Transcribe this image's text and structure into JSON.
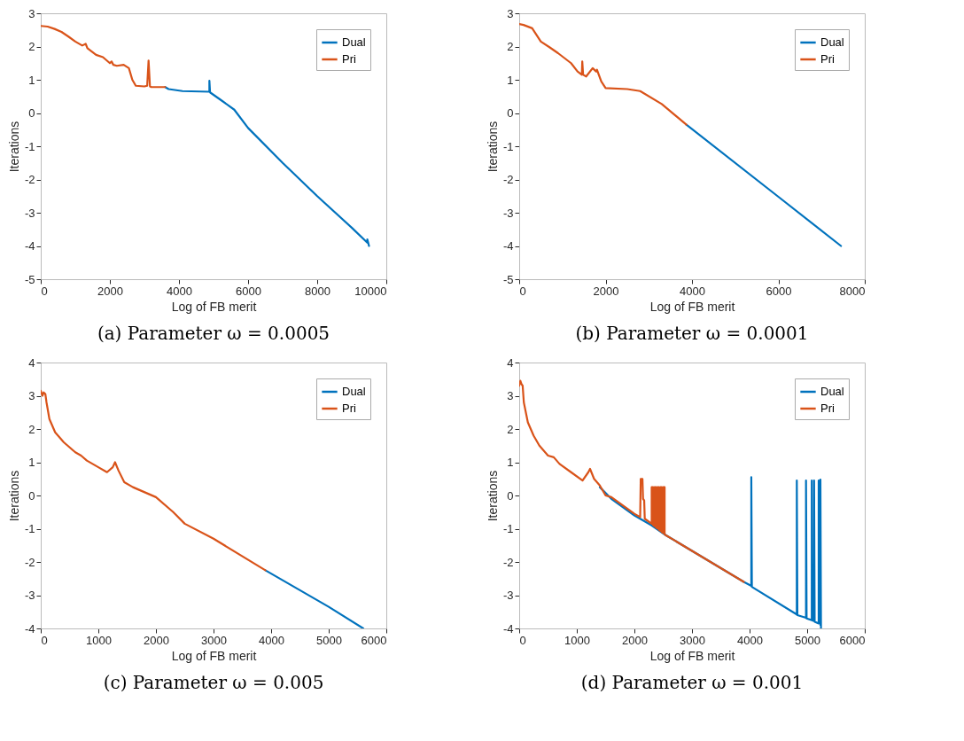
{
  "chart_data": [
    {
      "type": "line",
      "title": "(a) Parameter ω = 0.0005",
      "xlabel": "Log of FB merit",
      "ylabel": "Iterations",
      "xlim": [
        0,
        10000
      ],
      "xticks": [
        0,
        2000,
        4000,
        6000,
        8000,
        10000
      ],
      "ylim": [
        -5,
        3
      ],
      "yticks": [
        -5,
        -4,
        -3,
        -2,
        -1,
        0,
        1,
        2,
        3
      ],
      "legend": "top right",
      "line_style": "solid",
      "series": [
        {
          "name": "Dual",
          "color": "#0072bd",
          "x": [
            3600,
            3700,
            4100,
            4880,
            4880,
            4900,
            5200,
            5600,
            6000,
            7000,
            8000,
            9000,
            9450,
            9450,
            9500
          ],
          "values": [
            0.78,
            0.72,
            0.66,
            0.64,
            0.97,
            0.62,
            0.4,
            0.1,
            -0.45,
            -1.5,
            -2.5,
            -3.45,
            -3.9,
            -3.8,
            -4.0
          ]
        },
        {
          "name": "Pri",
          "color": "#d95319",
          "x": [
            0,
            200,
            400,
            600,
            800,
            1000,
            1200,
            1300,
            1350,
            1600,
            1800,
            2000,
            2050,
            2100,
            2200,
            2400,
            2550,
            2650,
            2750,
            3000,
            3080,
            3120,
            3160,
            3200,
            3400,
            3600
          ],
          "values": [
            2.62,
            2.6,
            2.53,
            2.44,
            2.3,
            2.15,
            2.03,
            2.08,
            1.95,
            1.75,
            1.68,
            1.5,
            1.55,
            1.45,
            1.42,
            1.45,
            1.35,
            1.0,
            0.82,
            0.8,
            0.82,
            1.58,
            0.8,
            0.78,
            0.78,
            0.78
          ]
        }
      ]
    },
    {
      "type": "line",
      "title": "(b) Parameter ω = 0.0001",
      "xlabel": "Log of FB merit",
      "ylabel": "Iterations",
      "xlim": [
        0,
        8000
      ],
      "xticks": [
        0,
        2000,
        4000,
        6000,
        8000
      ],
      "ylim": [
        -5,
        3
      ],
      "yticks": [
        -5,
        -4,
        -3,
        -2,
        -1,
        0,
        1,
        2,
        3
      ],
      "legend": "top right",
      "line_style": "solid",
      "series": [
        {
          "name": "Dual",
          "color": "#0072bd",
          "x": [
            3870,
            6000,
            7450
          ],
          "values": [
            -0.35,
            -2.52,
            -4.0
          ]
        },
        {
          "name": "Pri",
          "color": "#d95319",
          "x": [
            0,
            100,
            300,
            400,
            500,
            700,
            900,
            1200,
            1350,
            1450,
            1460,
            1480,
            1550,
            1700,
            1780,
            1800,
            1900,
            2000,
            2500,
            2800,
            3300,
            3870
          ],
          "values": [
            2.68,
            2.65,
            2.55,
            2.35,
            2.15,
            1.98,
            1.8,
            1.5,
            1.25,
            1.15,
            1.55,
            1.15,
            1.1,
            1.35,
            1.25,
            1.3,
            0.95,
            0.75,
            0.72,
            0.66,
            0.27,
            -0.35
          ]
        }
      ]
    },
    {
      "type": "line",
      "title": "(c) Parameter ω = 0.005",
      "xlabel": "Log of FB merit",
      "ylabel": "Iterations",
      "xlim": [
        0,
        6000
      ],
      "xticks": [
        0,
        1000,
        2000,
        3000,
        4000,
        5000,
        6000
      ],
      "ylim": [
        -4,
        4
      ],
      "yticks": [
        -4,
        -3,
        -2,
        -1,
        0,
        1,
        2,
        3,
        4
      ],
      "legend": "top right",
      "line_style": "solid",
      "series": [
        {
          "name": "Dual",
          "color": "#0072bd",
          "x": [
            3900,
            5000,
            5600
          ],
          "values": [
            -2.25,
            -3.35,
            -4.0
          ]
        },
        {
          "name": "Pri",
          "color": "#d95319",
          "x": [
            0,
            30,
            50,
            80,
            100,
            150,
            250,
            400,
            600,
            700,
            800,
            1000,
            1150,
            1250,
            1290,
            1350,
            1450,
            1600,
            2000,
            2300,
            2500,
            3000,
            3900
          ],
          "values": [
            3.15,
            3.0,
            3.1,
            3.05,
            2.8,
            2.3,
            1.9,
            1.6,
            1.3,
            1.2,
            1.05,
            0.85,
            0.7,
            0.85,
            1.0,
            0.75,
            0.4,
            0.25,
            -0.05,
            -0.5,
            -0.85,
            -1.3,
            -2.25
          ]
        }
      ]
    },
    {
      "type": "line",
      "title": "(d) Parameter ω = 0.001",
      "xlabel": "Log of FB merit",
      "ylabel": "Iterations",
      "xlim": [
        0,
        6000
      ],
      "xticks": [
        0,
        1000,
        2000,
        3000,
        4000,
        5000,
        6000
      ],
      "ylim": [
        -4,
        4
      ],
      "yticks": [
        -4,
        -3,
        -2,
        -1,
        0,
        1,
        2,
        3,
        4
      ],
      "legend": "top right",
      "line_style": "solid",
      "series": [
        {
          "name": "Dual",
          "color": "#0072bd",
          "x": [
            1400,
            1600,
            2000,
            2300,
            2550,
            3900,
            4030,
            4030,
            4040,
            4820,
            4820,
            4830,
            4980,
            4980,
            4990,
            5080,
            5080,
            5090,
            5120,
            5120,
            5130,
            5200,
            5200,
            5230,
            5230,
            5240
          ],
          "values": [
            0.25,
            -0.1,
            -0.6,
            -0.9,
            -1.2,
            -2.6,
            -2.72,
            0.55,
            -2.75,
            -3.58,
            0.45,
            -3.6,
            -3.68,
            0.45,
            -3.7,
            -3.75,
            0.45,
            -3.76,
            -3.78,
            0.45,
            -3.8,
            -3.85,
            0.45,
            -3.9,
            0.48,
            -4.0
          ]
        },
        {
          "name": "Pri",
          "color": "#d95319",
          "x": [
            0,
            20,
            40,
            60,
            80,
            150,
            250,
            350,
            500,
            600,
            700,
            900,
            1100,
            1200,
            1230,
            1300,
            1400,
            1500,
            1600,
            2000,
            2100,
            2110,
            2140,
            2150,
            2170,
            2180,
            2300,
            2300,
            2325,
            2325,
            2350,
            2350,
            2375,
            2375,
            2400,
            2400,
            2425,
            2425,
            2450,
            2450,
            2475,
            2475,
            2500,
            2500,
            2525,
            2525,
            2550,
            3900
          ],
          "values": [
            3.3,
            3.45,
            3.35,
            3.3,
            2.8,
            2.2,
            1.8,
            1.5,
            1.2,
            1.15,
            0.95,
            0.7,
            0.45,
            0.7,
            0.8,
            0.5,
            0.3,
            0.0,
            -0.05,
            -0.55,
            -0.65,
            0.5,
            0.5,
            -0.1,
            -0.15,
            -0.7,
            -0.85,
            0.25,
            0.25,
            -0.89,
            -0.92,
            0.25,
            0.25,
            -0.96,
            -0.99,
            0.25,
            0.25,
            -1.03,
            -1.06,
            0.25,
            0.25,
            -1.1,
            -1.13,
            0.25,
            0.25,
            -1.17,
            -1.2,
            -2.6
          ]
        }
      ]
    }
  ]
}
